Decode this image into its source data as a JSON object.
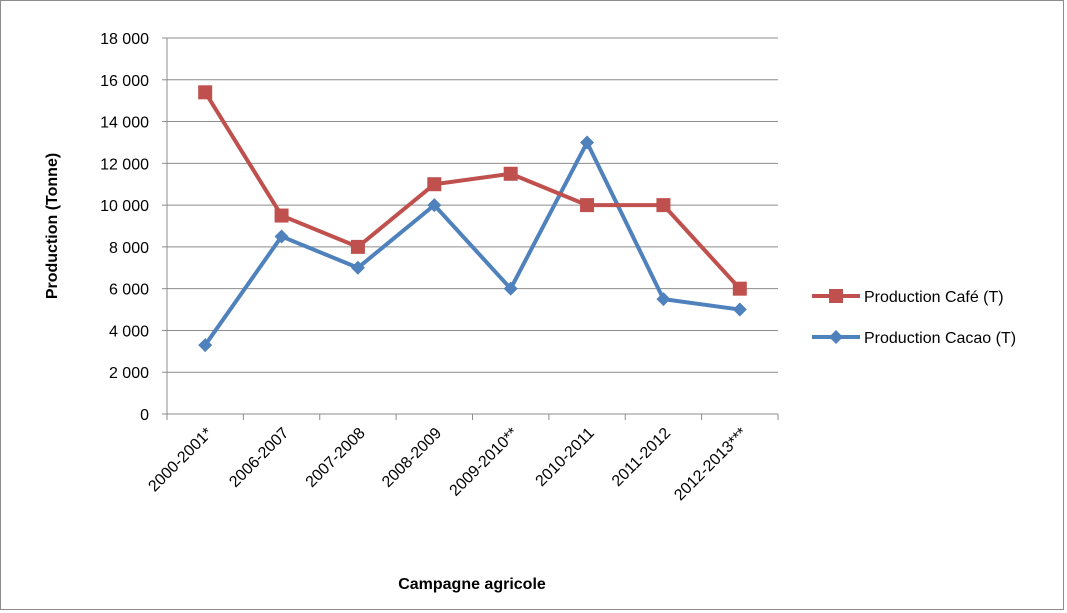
{
  "chart_data": {
    "type": "line",
    "title": "",
    "xlabel": "Campagne agricole",
    "ylabel": "Production (Tonne)",
    "ylim": [
      0,
      18000
    ],
    "yticks": [
      0,
      2000,
      4000,
      6000,
      8000,
      10000,
      12000,
      14000,
      16000,
      18000
    ],
    "ytick_labels": [
      "0",
      "2 000",
      "4 000",
      "6 000",
      "8 000",
      "10 000",
      "12 000",
      "14 000",
      "16 000",
      "18 000"
    ],
    "grid": "horizontal",
    "legend_position": "right",
    "categories": [
      "2000-2001*",
      "2006-2007",
      "2007-2008",
      "2008-2009",
      "2009-2010**",
      "2010-2011",
      "2011-2012",
      "2012-2013***"
    ],
    "series": [
      {
        "name": "Production Café (T)",
        "color": "#c0504d",
        "marker": "square",
        "values": [
          15400,
          9500,
          8000,
          11000,
          11500,
          10000,
          10000,
          6000
        ]
      },
      {
        "name": "Production Cacao (T)",
        "color": "#4f81bd",
        "marker": "diamond",
        "values": [
          3300,
          8500,
          7000,
          10000,
          6000,
          13000,
          5500,
          5000
        ]
      }
    ]
  }
}
